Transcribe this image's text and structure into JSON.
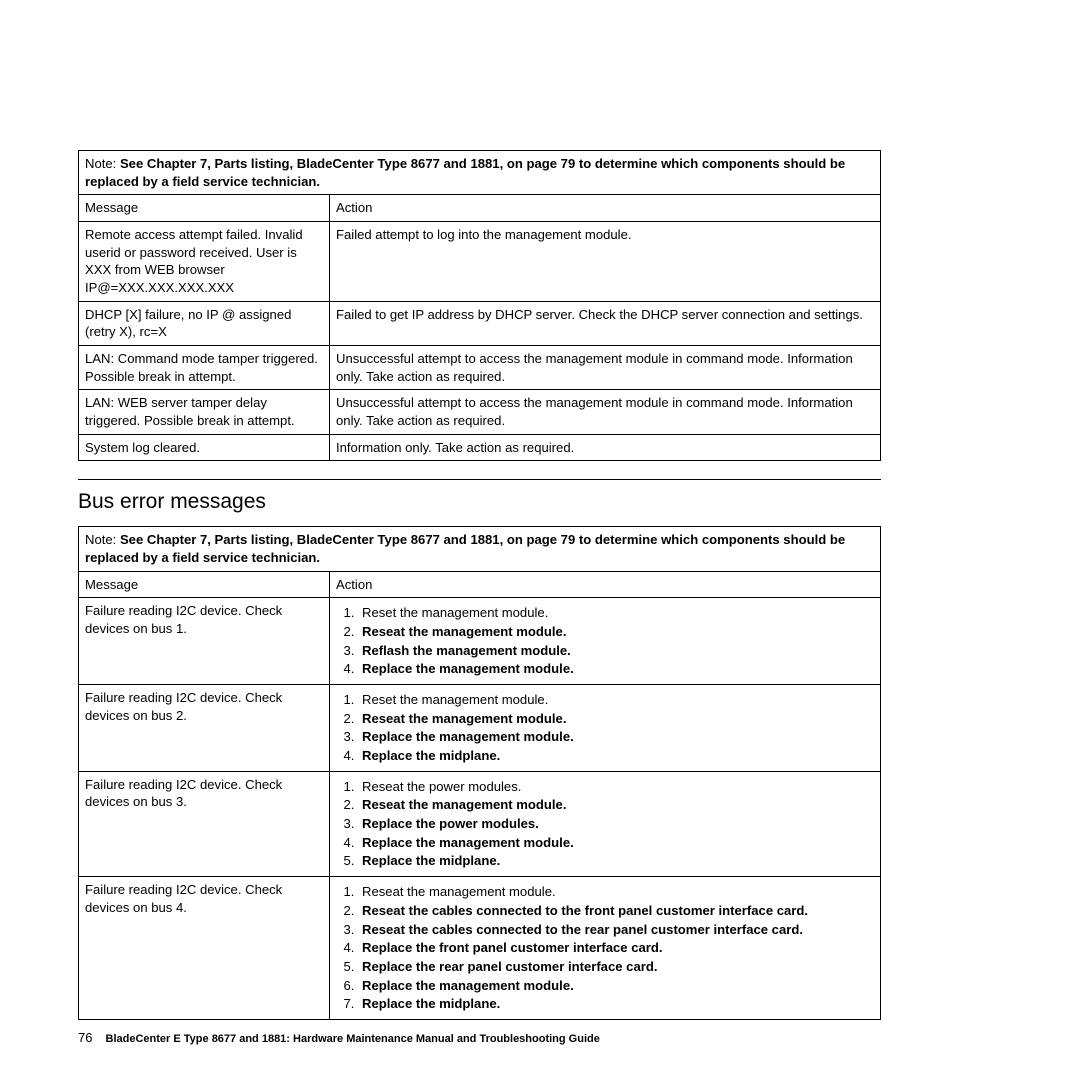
{
  "table1": {
    "note_prefix": "Note:",
    "note_text": "See Chapter 7, Parts listing, BladeCenter Type 8677 and 1881, on page 79 to determine which components should be replaced by a field service technician.",
    "header_msg": "Message",
    "header_act": "Action",
    "rows": [
      {
        "msg": "Remote access attempt failed. Invalid userid or password received. User is XXX from WEB browser IP@=XXX.XXX.XXX.XXX",
        "act": "Failed attempt to log into the management module."
      },
      {
        "msg": "DHCP [X] failure, no IP @ assigned (retry X), rc=X",
        "act": "Failed to get IP address by DHCP server. Check the DHCP server connection and settings."
      },
      {
        "msg": "LAN: Command mode tamper triggered. Possible break in attempt.",
        "act": "Unsuccessful attempt to access the management module in command mode. Information only. Take action as required."
      },
      {
        "msg": "LAN: WEB server tamper delay triggered. Possible break in attempt.",
        "act": "Unsuccessful attempt to access the management module in command mode. Information only. Take action as required."
      },
      {
        "msg": "System log cleared.",
        "act": "Information only. Take action as required."
      }
    ]
  },
  "section_heading": "Bus error messages",
  "table2": {
    "note_prefix": "Note:",
    "note_text": "See Chapter 7, Parts listing, BladeCenter Type 8677 and 1881, on page 79 to determine which components should be replaced by a field service technician.",
    "header_msg": "Message",
    "header_act": "Action",
    "rows": [
      {
        "msg": "Failure reading I2C device. Check devices on bus 1.",
        "steps": [
          {
            "text": "Reset the management module.",
            "bold": false
          },
          {
            "text": "Reseat the management module.",
            "bold": true
          },
          {
            "text": "Reflash the management module.",
            "bold": true
          },
          {
            "text": "Replace the management module.",
            "bold": true
          }
        ]
      },
      {
        "msg": "Failure reading I2C device. Check devices on bus 2.",
        "steps": [
          {
            "text": "Reset the management module.",
            "bold": false
          },
          {
            "text": "Reseat the management module.",
            "bold": true
          },
          {
            "text": "Replace the management module.",
            "bold": true
          },
          {
            "text": "Replace the midplane.",
            "bold": true
          }
        ]
      },
      {
        "msg": "Failure reading I2C device. Check devices on bus 3.",
        "steps": [
          {
            "text": "Reseat the power modules.",
            "bold": false
          },
          {
            "text": "Reseat the management module.",
            "bold": true
          },
          {
            "text": "Replace the power modules.",
            "bold": true
          },
          {
            "text": "Replace the management module.",
            "bold": true
          },
          {
            "text": "Replace the midplane.",
            "bold": true
          }
        ]
      },
      {
        "msg": "Failure reading I2C device. Check devices on bus 4.",
        "steps": [
          {
            "text": "Reseat the management module.",
            "bold": false
          },
          {
            "text": "Reseat the cables connected to the front panel customer interface card.",
            "bold": true
          },
          {
            "text": "Reseat the cables connected to the rear panel customer interface card.",
            "bold": true
          },
          {
            "text": "Replace the front panel customer interface card.",
            "bold": true
          },
          {
            "text": "Replace the rear panel customer interface card.",
            "bold": true
          },
          {
            "text": "Replace the management module.",
            "bold": true
          },
          {
            "text": "Replace the midplane.",
            "bold": true
          }
        ]
      }
    ]
  },
  "footer": {
    "page_number": "76",
    "text": "BladeCenter E Type 8677 and 1881: Hardware Maintenance Manual and Troubleshooting Guide"
  }
}
